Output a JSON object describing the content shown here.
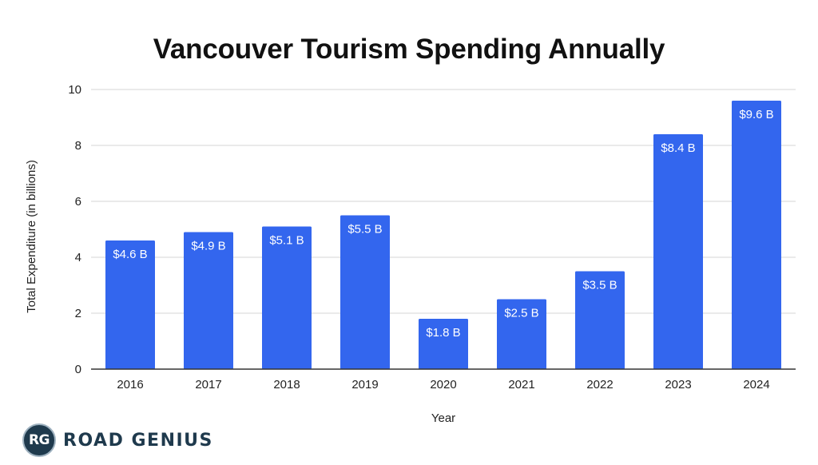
{
  "chart_data": {
    "type": "bar",
    "title": "Vancouver Tourism Spending Annually",
    "xlabel": "Year",
    "ylabel": "Total Expenditure (in billions)",
    "categories": [
      "2016",
      "2017",
      "2018",
      "2019",
      "2020",
      "2021",
      "2022",
      "2023",
      "2024"
    ],
    "values": [
      4.6,
      4.9,
      5.1,
      5.5,
      1.8,
      2.5,
      3.5,
      8.4,
      9.6
    ],
    "data_labels": [
      "$4.6 B",
      "$4.9 B",
      "$5.1 B",
      "$5.5 B",
      "$1.8 B",
      "$2.5 B",
      "$3.5 B",
      "$8.4 B",
      "$9.6 B"
    ],
    "ylim": [
      0,
      10
    ],
    "yticks": [
      0,
      2,
      4,
      6,
      8,
      10
    ],
    "grid": true,
    "bar_color": "#3366ee"
  },
  "brand": {
    "badge": "RG",
    "name": "ROAD GENIUS"
  }
}
